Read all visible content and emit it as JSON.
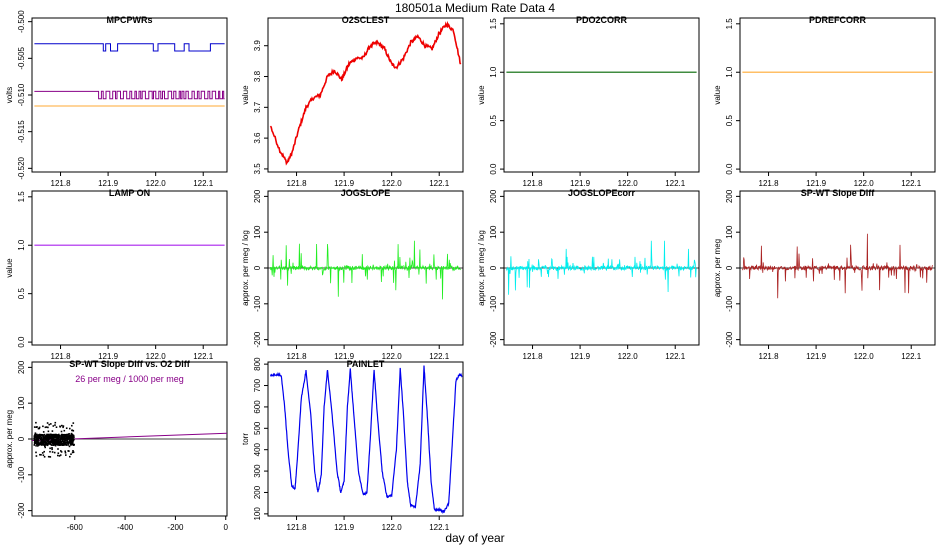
{
  "title": "180501a   Medium Rate Data 4",
  "xlabel": "day of year",
  "chart_data": [
    {
      "id": "mpcpwrs",
      "type": "line",
      "title": "MPCPWRs",
      "ylabel": "volts",
      "xlim": [
        121.74,
        122.15
      ],
      "ylim": [
        -0.5205,
        -0.4995
      ],
      "xticks": [
        121.8,
        121.9,
        122.0,
        122.1
      ],
      "xtick_labels": [
        "121.8",
        "121.9",
        "122.0",
        "122.1"
      ],
      "yticks": [
        -0.52,
        -0.515,
        -0.51,
        -0.505,
        -0.5
      ],
      "ytick_labels": [
        "-0.520",
        "-0.515",
        "-0.510",
        "-0.505",
        "-0.500"
      ],
      "series": [
        {
          "color": "#0000cc",
          "values": "step",
          "base": -0.503,
          "alt": -0.504
        },
        {
          "color": "#880088",
          "values": "step",
          "base": -0.5095,
          "alt": -0.5105
        },
        {
          "color": "#ffaa33",
          "values": "flat",
          "base": -0.5115
        }
      ]
    },
    {
      "id": "o2sclest",
      "type": "line",
      "title": "O2SCLEST",
      "ylabel": "value",
      "xlim": [
        121.74,
        122.15
      ],
      "ylim": [
        3.49,
        3.99
      ],
      "xticks": [
        121.8,
        121.9,
        122.0,
        122.1
      ],
      "xtick_labels": [
        "121.8",
        "121.9",
        "122.0",
        "122.1"
      ],
      "yticks": [
        3.5,
        3.6,
        3.7,
        3.8,
        3.9
      ],
      "ytick_labels": [
        "3.5",
        "3.6",
        "3.7",
        "3.8",
        "3.9"
      ],
      "series": [
        {
          "color": "#ee0000",
          "x": [
            121.745,
            121.765,
            121.78,
            121.79,
            121.805,
            121.82,
            121.835,
            121.85,
            121.865,
            121.88,
            121.895,
            121.91,
            121.925,
            121.94,
            121.955,
            121.97,
            121.985,
            122.0,
            122.01,
            122.025,
            122.04,
            122.055,
            122.07,
            122.085,
            122.1,
            122.115,
            122.13,
            122.145
          ],
          "y": [
            3.64,
            3.56,
            3.52,
            3.55,
            3.63,
            3.7,
            3.73,
            3.74,
            3.8,
            3.82,
            3.79,
            3.84,
            3.86,
            3.86,
            3.9,
            3.91,
            3.89,
            3.84,
            3.83,
            3.86,
            3.91,
            3.93,
            3.9,
            3.89,
            3.94,
            3.97,
            3.95,
            3.84
          ]
        }
      ]
    },
    {
      "id": "pdo2corr",
      "type": "line",
      "title": "PDO2CORR",
      "ylabel": "value",
      "xlim": [
        121.74,
        122.15
      ],
      "ylim": [
        -0.03,
        1.56
      ],
      "xticks": [
        121.8,
        121.9,
        122.0,
        122.1
      ],
      "xtick_labels": [
        "121.8",
        "121.9",
        "122.0",
        "122.1"
      ],
      "yticks": [
        0.0,
        0.5,
        1.0,
        1.5
      ],
      "ytick_labels": [
        "0.0",
        "0.5",
        "1.0",
        "1.5"
      ],
      "series": [
        {
          "color": "#006600",
          "x": [
            121.745,
            122.145
          ],
          "y": [
            1.0,
            1.0
          ]
        }
      ]
    },
    {
      "id": "pdrefcorr",
      "type": "line",
      "title": "PDREFCORR",
      "ylabel": "value",
      "xlim": [
        121.74,
        122.15
      ],
      "ylim": [
        -0.03,
        1.56
      ],
      "xticks": [
        121.8,
        121.9,
        122.0,
        122.1
      ],
      "xtick_labels": [
        "121.8",
        "121.9",
        "122.0",
        "122.1"
      ],
      "yticks": [
        0.0,
        0.5,
        1.0,
        1.5
      ],
      "ytick_labels": [
        "0.0",
        "0.5",
        "1.0",
        "1.5"
      ],
      "series": [
        {
          "color": "#ffaa33",
          "x": [
            121.745,
            122.145
          ],
          "y": [
            1.0,
            1.0
          ]
        }
      ]
    },
    {
      "id": "lampon",
      "type": "line",
      "title": "LAMP ON",
      "ylabel": "value",
      "xlim": [
        121.74,
        122.15
      ],
      "ylim": [
        -0.03,
        1.56
      ],
      "xticks": [
        121.8,
        121.9,
        122.0,
        122.1
      ],
      "xtick_labels": [
        "121.8",
        "121.9",
        "122.0",
        "122.1"
      ],
      "yticks": [
        0.0,
        0.5,
        1.0,
        1.5
      ],
      "ytick_labels": [
        "0.0",
        "0.5",
        "1.0",
        "1.5"
      ],
      "series": [
        {
          "color": "#aa22ee",
          "x": [
            121.745,
            122.145
          ],
          "y": [
            1.0,
            1.0
          ]
        }
      ]
    },
    {
      "id": "jogslope",
      "type": "line",
      "title": "JOGSLOPE",
      "ylabel": "approx. per meg / log",
      "xlim": [
        121.74,
        122.15
      ],
      "ylim": [
        -215,
        215
      ],
      "xticks": [
        121.8,
        121.9,
        122.0,
        122.1
      ],
      "xtick_labels": [
        "121.8",
        "121.9",
        "122.0",
        "122.1"
      ],
      "yticks": [
        -200,
        -100,
        0,
        100,
        200
      ],
      "ytick_labels": [
        "-200",
        "-100",
        "0",
        "100",
        "200"
      ],
      "zero_line": true,
      "series": [
        {
          "color": "#22ee22",
          "noise": 60,
          "spike": 80
        }
      ]
    },
    {
      "id": "jogslopecorr",
      "type": "line",
      "title": "JOGSLOPEcorr",
      "ylabel": "approx. per meg / log",
      "xlim": [
        121.74,
        122.15
      ],
      "ylim": [
        -215,
        215
      ],
      "xticks": [
        121.8,
        121.9,
        122.0,
        122.1
      ],
      "xtick_labels": [
        "121.8",
        "121.9",
        "122.0",
        "122.1"
      ],
      "yticks": [
        -200,
        -100,
        0,
        100,
        200
      ],
      "ytick_labels": [
        "-200",
        "-100",
        "0",
        "100",
        "200"
      ],
      "zero_line": true,
      "series": [
        {
          "color": "#00eeee",
          "noise": 45,
          "spike": 70
        }
      ]
    },
    {
      "id": "spwtslopediff",
      "type": "line",
      "title": "SP-WT Slope Diff",
      "ylabel": "approx. per meg",
      "xlim": [
        121.74,
        122.15
      ],
      "ylim": [
        -215,
        215
      ],
      "xticks": [
        121.8,
        121.9,
        122.0,
        122.1
      ],
      "xtick_labels": [
        "121.8",
        "121.9",
        "122.0",
        "122.1"
      ],
      "yticks": [
        -200,
        -100,
        0,
        100,
        200
      ],
      "ytick_labels": [
        "-200",
        "-100",
        "0",
        "100",
        "200"
      ],
      "zero_line": true,
      "series": [
        {
          "color": "#aa2222",
          "noise": 55,
          "spike": 90
        }
      ]
    },
    {
      "id": "spwtvso2",
      "type": "scatter",
      "title": "SP-WT Slope Diff vs. O2 Diff",
      "ylabel": "approx. per meg",
      "xlim": [
        -770,
        5
      ],
      "ylim": [
        -215,
        215
      ],
      "xticks": [
        -600,
        -400,
        -200,
        0
      ],
      "xtick_labels": [
        "-600",
        "-400",
        "-200",
        "0"
      ],
      "yticks": [
        -200,
        -100,
        0,
        100,
        200
      ],
      "ytick_labels": [
        "-200",
        "-100",
        "0",
        "100",
        "200"
      ],
      "zero_line": true,
      "annotation": "26 per meg / 1000 per meg",
      "annotation_color": "#880088",
      "points": {
        "color": "#000000",
        "xrange": [
          -765,
          -605
        ],
        "yspread": 30
      },
      "fit_line": {
        "color": "#880088",
        "slope": 0.026,
        "intercept": 16
      }
    },
    {
      "id": "painlet",
      "type": "line",
      "title": "PAINLET",
      "ylabel": "torr",
      "xlim": [
        121.74,
        122.15
      ],
      "ylim": [
        90,
        810
      ],
      "xticks": [
        121.8,
        121.9,
        122.0,
        122.1
      ],
      "xtick_labels": [
        "121.8",
        "121.9",
        "122.0",
        "122.1"
      ],
      "yticks": [
        100,
        200,
        300,
        400,
        500,
        600,
        700,
        800
      ],
      "ytick_labels": [
        "100",
        "200",
        "300",
        "400",
        "500",
        "600",
        "700",
        "800"
      ],
      "series": [
        {
          "color": "#0000ee",
          "x": [
            121.745,
            121.76,
            121.768,
            121.775,
            121.782,
            121.79,
            121.797,
            121.803,
            121.81,
            121.82,
            121.83,
            121.838,
            121.845,
            121.852,
            121.858,
            121.865,
            121.875,
            121.885,
            121.893,
            121.9,
            121.907,
            121.913,
            121.92,
            121.93,
            121.94,
            121.948,
            121.955,
            121.963,
            121.97,
            121.98,
            121.99,
            122.0,
            122.01,
            122.018,
            122.025,
            122.033,
            122.04,
            122.05,
            122.06,
            122.068,
            122.075,
            122.083,
            122.09,
            122.1,
            122.11,
            122.12,
            122.128,
            122.135,
            122.142,
            122.148
          ],
          "y": [
            750,
            750,
            748,
            600,
            400,
            230,
            220,
            400,
            640,
            770,
            560,
            300,
            200,
            280,
            600,
            775,
            560,
            300,
            200,
            250,
            600,
            775,
            580,
            300,
            190,
            200,
            450,
            775,
            560,
            300,
            180,
            185,
            400,
            780,
            560,
            250,
            140,
            130,
            330,
            790,
            560,
            250,
            120,
            120,
            110,
            150,
            450,
            720,
            750,
            745
          ]
        }
      ]
    }
  ]
}
